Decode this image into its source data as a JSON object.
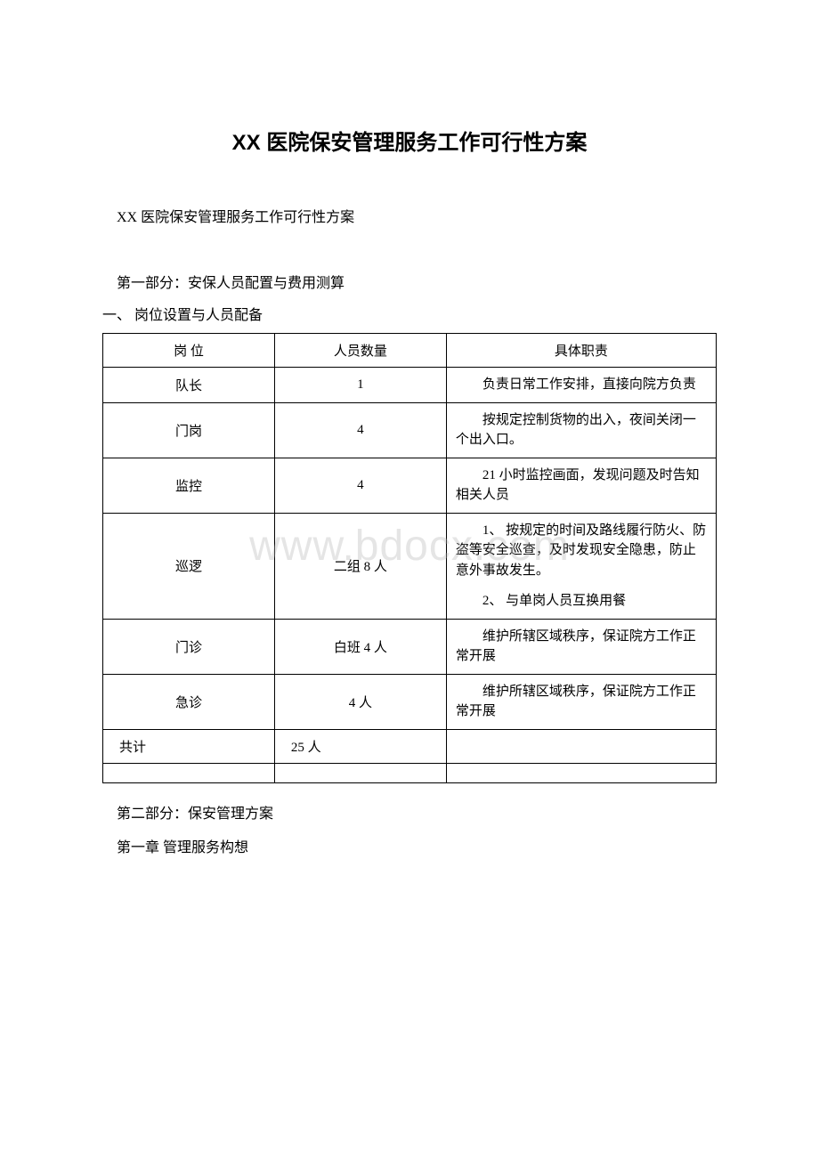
{
  "title": "XX 医院保安管理服务工作可行性方案",
  "subtitle": "XX 医院保安管理服务工作可行性方案",
  "section1_header": "第一部分：安保人员配置与费用测算",
  "section1_sub": "一、 岗位设置与人员配备",
  "watermark": "www.bdocx.com",
  "table": {
    "columns": [
      "岗 位",
      "人员数量",
      "具体职责"
    ],
    "rows": [
      {
        "position": "队长",
        "count": "1",
        "duty": "负责日常工作安排，直接向院方负责"
      },
      {
        "position": "门岗",
        "count": "4",
        "duty": "按规定控制货物的出入，夜间关闭一个出入口。"
      },
      {
        "position": "监控",
        "count": "4",
        "duty": "21 小时监控画面，发现问题及时告知相关人员"
      },
      {
        "position": "巡逻",
        "count": "二组 8 人",
        "duty_p1": "1、 按规定的时间及路线履行防火、防盗等安全巡查，及时发现安全隐患，防止意外事故发生。",
        "duty_p2": "2、 与单岗人员互换用餐"
      },
      {
        "position": "门诊",
        "count": "白班 4 人",
        "duty": "维护所辖区域秩序，保证院方工作正常开展"
      },
      {
        "position": "急诊",
        "count": "4 人",
        "duty": "维护所辖区域秩序，保证院方工作正常开展"
      }
    ],
    "total": {
      "position": "共计",
      "count": "25 人",
      "duty": ""
    }
  },
  "section2_header": "第二部分：保安管理方案",
  "chapter1": "第一章 管理服务构想",
  "colors": {
    "background": "#ffffff",
    "text": "#000000",
    "border": "#000000",
    "watermark": "rgba(180,180,180,0.35)"
  },
  "typography": {
    "title_fontsize": 24,
    "body_fontsize": 16,
    "table_fontsize": 15,
    "watermark_fontsize": 48
  }
}
